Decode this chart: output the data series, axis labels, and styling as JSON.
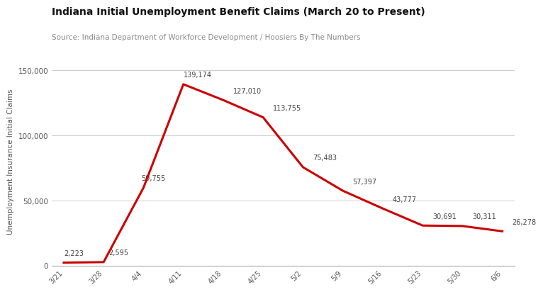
{
  "title": "Indiana Initial Unemployment Benefit Claims (March 20 to Present)",
  "source": "Source: Indiana Department of Workforce Development / Hoosiers By The Numbers",
  "ylabel": "Unemployment Insurance Initial Claims",
  "x_labels": [
    "3/21",
    "3/28",
    "4/4",
    "4/11",
    "4/18",
    "4/25",
    "5/2",
    "5/9",
    "5/16",
    "5/23",
    "5/30",
    "6/6"
  ],
  "values": [
    2223,
    2595,
    59755,
    139174,
    127010,
    113755,
    75483,
    57397,
    43777,
    30691,
    30311,
    26278
  ],
  "labels": [
    "2,223",
    "2,595",
    "59,755",
    "139,174",
    "127,010",
    "113,755",
    "75,483",
    "57,397",
    "43,777",
    "30,691",
    "30,311",
    "26,278"
  ],
  "line_color": "#cc0000",
  "background_color": "#ffffff",
  "grid_color": "#cccccc",
  "title_color": "#111111",
  "source_color": "#888888",
  "label_color": "#444444",
  "ylim": [
    0,
    160000
  ],
  "yticks": [
    0,
    50000,
    100000,
    150000
  ],
  "title_fontsize": 10,
  "source_fontsize": 7.5,
  "label_fontsize": 7,
  "ylabel_fontsize": 7.5
}
